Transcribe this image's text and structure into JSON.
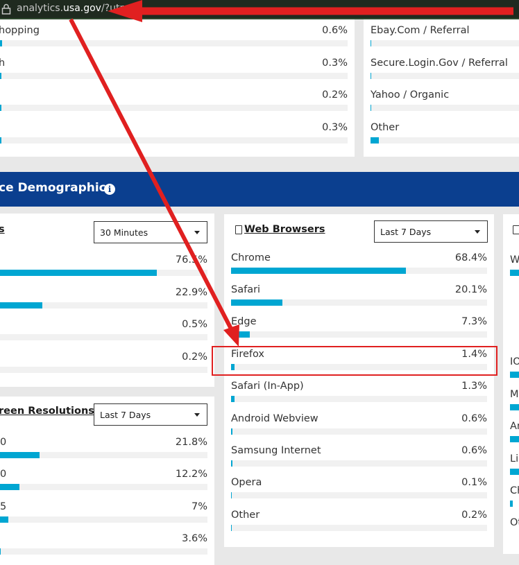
{
  "urlbar": {
    "host_prefix": "analytics.",
    "host_bold": "usa.gov",
    "path": "/?utm",
    "faded_tail": "=..."
  },
  "top_left_card": {
    "rows": [
      {
        "label": "hopping",
        "value": "0.6%",
        "fill": 0.006
      },
      {
        "label": "h",
        "value": "0.3%",
        "fill": 0.003
      },
      {
        "label": "",
        "value": "0.2%",
        "fill": 0.002
      },
      {
        "label": "",
        "value": "0.3%",
        "fill": 0.003
      }
    ]
  },
  "top_right_card": {
    "rows": [
      {
        "label": "Ebay.Com / Referral",
        "fill": 0.004
      },
      {
        "label": "Secure.Login.Gov / Referral",
        "fill": 0.004
      },
      {
        "label": "Yahoo / Organic",
        "fill": 0.004
      },
      {
        "label": "Other",
        "fill": 0.05
      }
    ]
  },
  "section": {
    "title": "ce Demographics",
    "info_glyph": "i"
  },
  "left_card": {
    "title": "s",
    "select": "30 Minutes",
    "rows": [
      {
        "value": "76.5%",
        "fill": 0.765
      },
      {
        "value": "22.9%",
        "fill": 0.229
      },
      {
        "value": "0.5%",
        "fill": 0.005
      },
      {
        "value": "0.2%",
        "fill": 0.002
      }
    ]
  },
  "resolutions_card": {
    "title": "reen Resolutions",
    "select": "Last 7 Days",
    "rows": [
      {
        "label": "0",
        "value": "21.8%",
        "fill": 0.218
      },
      {
        "label": "0",
        "value": "12.2%",
        "fill": 0.122
      },
      {
        "label": "5",
        "value": "7%",
        "fill": 0.07
      },
      {
        "label": "",
        "value": "3.6%",
        "fill": 0.036
      }
    ]
  },
  "browsers_card": {
    "title": "Web Browsers",
    "select": "Last 7 Days",
    "rows": [
      {
        "label": "Chrome",
        "value": "68.4%",
        "fill": 0.684
      },
      {
        "label": "Safari",
        "value": "20.1%",
        "fill": 0.201
      },
      {
        "label": "Edge",
        "value": "7.3%",
        "fill": 0.073
      },
      {
        "label": "Firefox",
        "value": "1.4%",
        "fill": 0.014
      },
      {
        "label": "Safari (In-App)",
        "value": "1.3%",
        "fill": 0.013
      },
      {
        "label": "Android Webview",
        "value": "0.6%",
        "fill": 0.006
      },
      {
        "label": "Samsung Internet",
        "value": "0.6%",
        "fill": 0.006
      },
      {
        "label": "Opera",
        "value": "0.1%",
        "fill": 0.001
      },
      {
        "label": "Other",
        "value": "0.2%",
        "fill": 0.002
      }
    ]
  },
  "right_card": {
    "rows": [
      {
        "label": "W"
      },
      {
        "label": "IO"
      },
      {
        "label": "M"
      },
      {
        "label": "An"
      },
      {
        "label": "Lin"
      },
      {
        "label": "Ch"
      },
      {
        "label": "Ot"
      }
    ]
  },
  "colors": {
    "bar": "#00a6d2",
    "section": "#0b3f8f",
    "annotation": "#e02020"
  }
}
